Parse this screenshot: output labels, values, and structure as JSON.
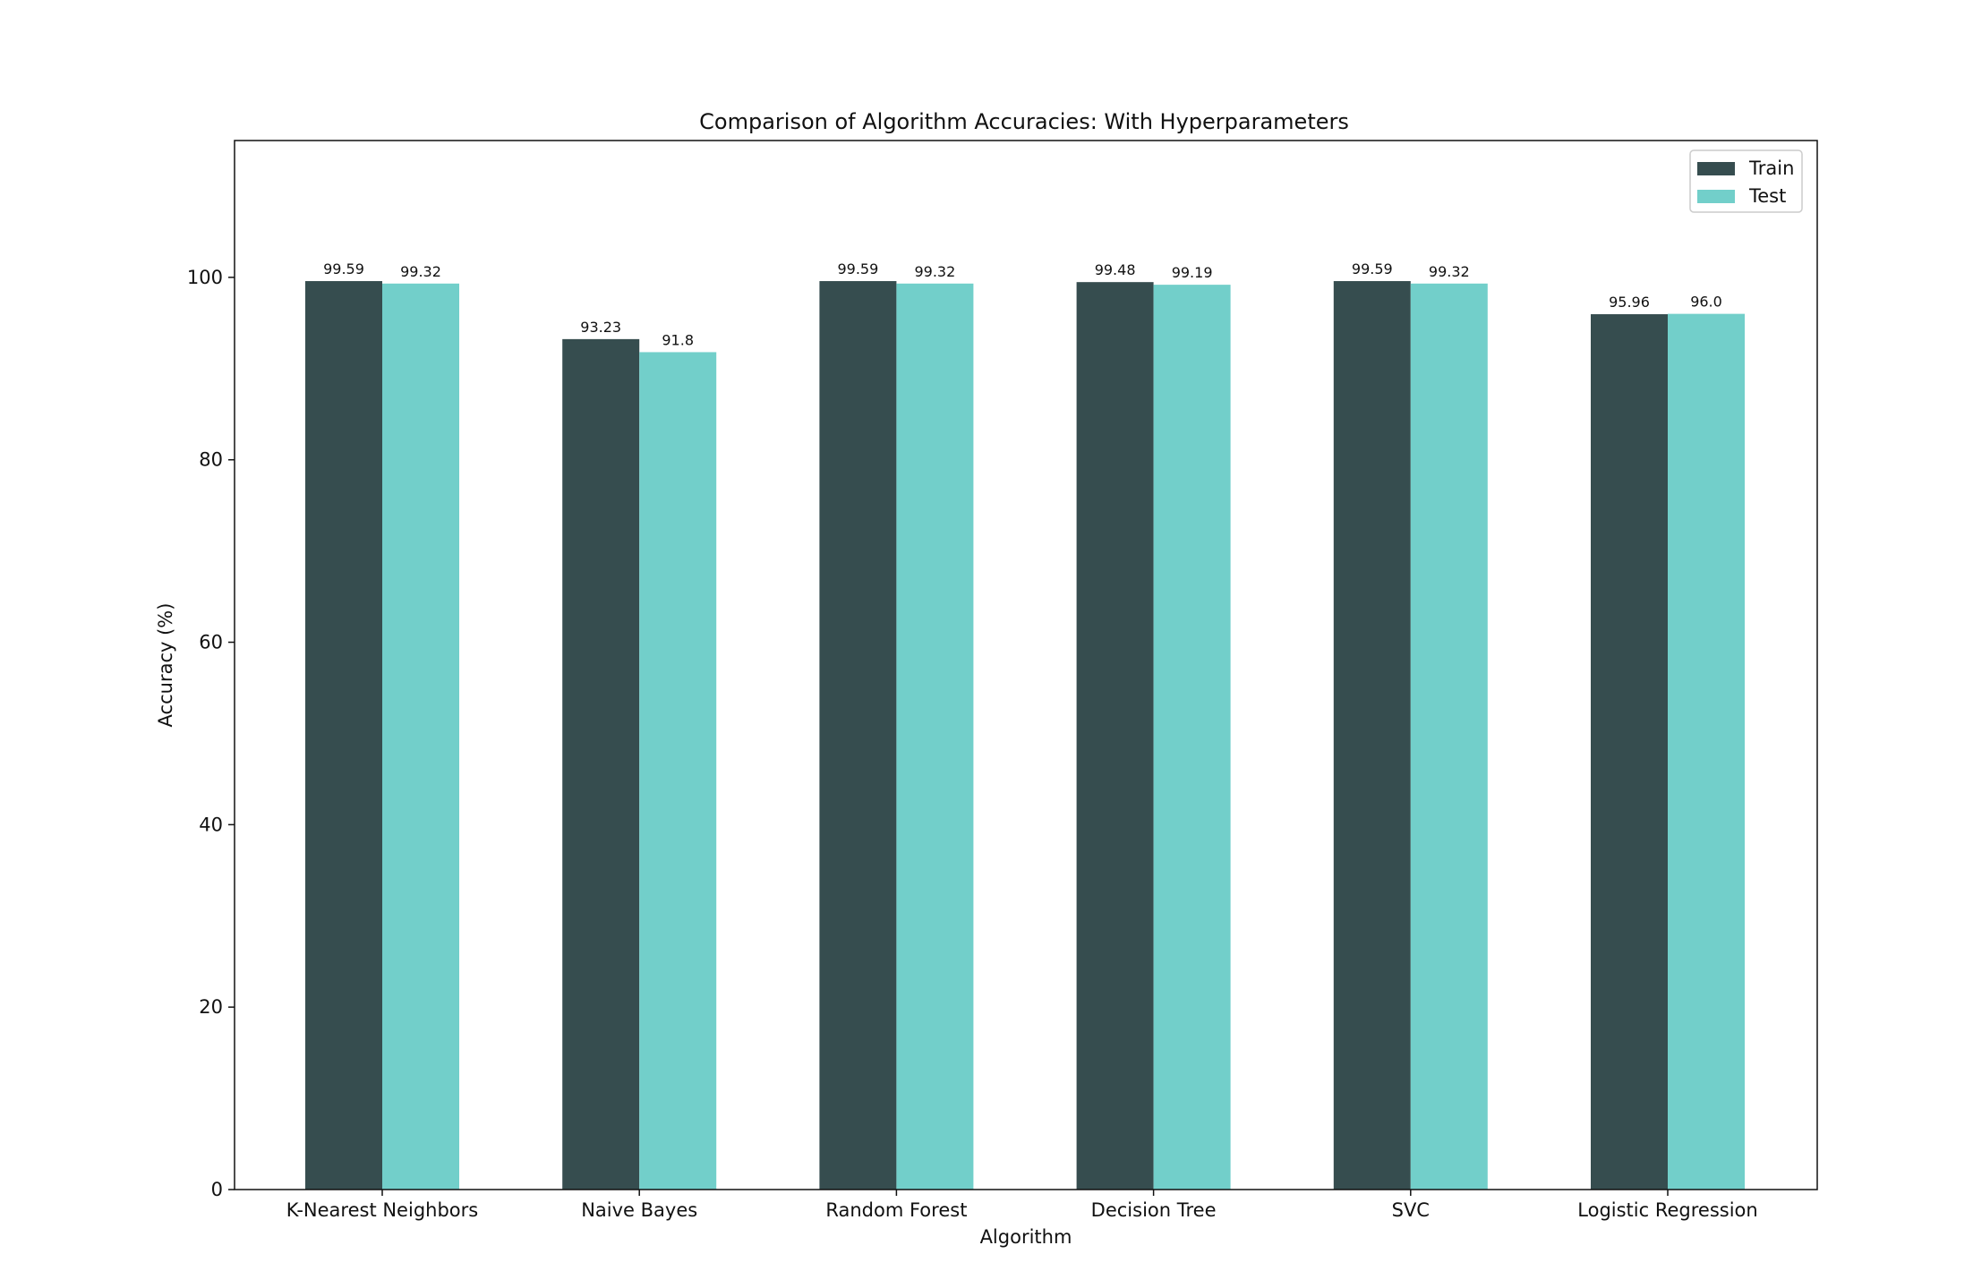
{
  "chart_data": {
    "type": "bar",
    "title": "Comparison of Algorithm Accuracies: With Hyperparameters",
    "xlabel": "Algorithm",
    "ylabel": "Accuracy (%)",
    "ylim": [
      0,
      115
    ],
    "yticks": [
      0,
      20,
      40,
      60,
      80,
      100
    ],
    "categories": [
      "K-Nearest Neighbors",
      "Naive Bayes",
      "Random Forest",
      "Decision Tree",
      "SVC",
      "Logistic Regression"
    ],
    "series": [
      {
        "name": "Train",
        "color": "#364d4f",
        "values": [
          99.59,
          93.23,
          99.59,
          99.48,
          99.59,
          95.96
        ],
        "labels": [
          "99.59",
          "93.23",
          "99.59",
          "99.48",
          "99.59",
          "95.96"
        ]
      },
      {
        "name": "Test",
        "color": "#72cfca",
        "values": [
          99.32,
          91.8,
          99.32,
          99.19,
          99.32,
          96.0
        ],
        "labels": [
          "99.32",
          "91.8",
          "99.32",
          "99.19",
          "99.32",
          "96.0"
        ]
      }
    ],
    "legend_position": "top-right",
    "grid": false
  }
}
